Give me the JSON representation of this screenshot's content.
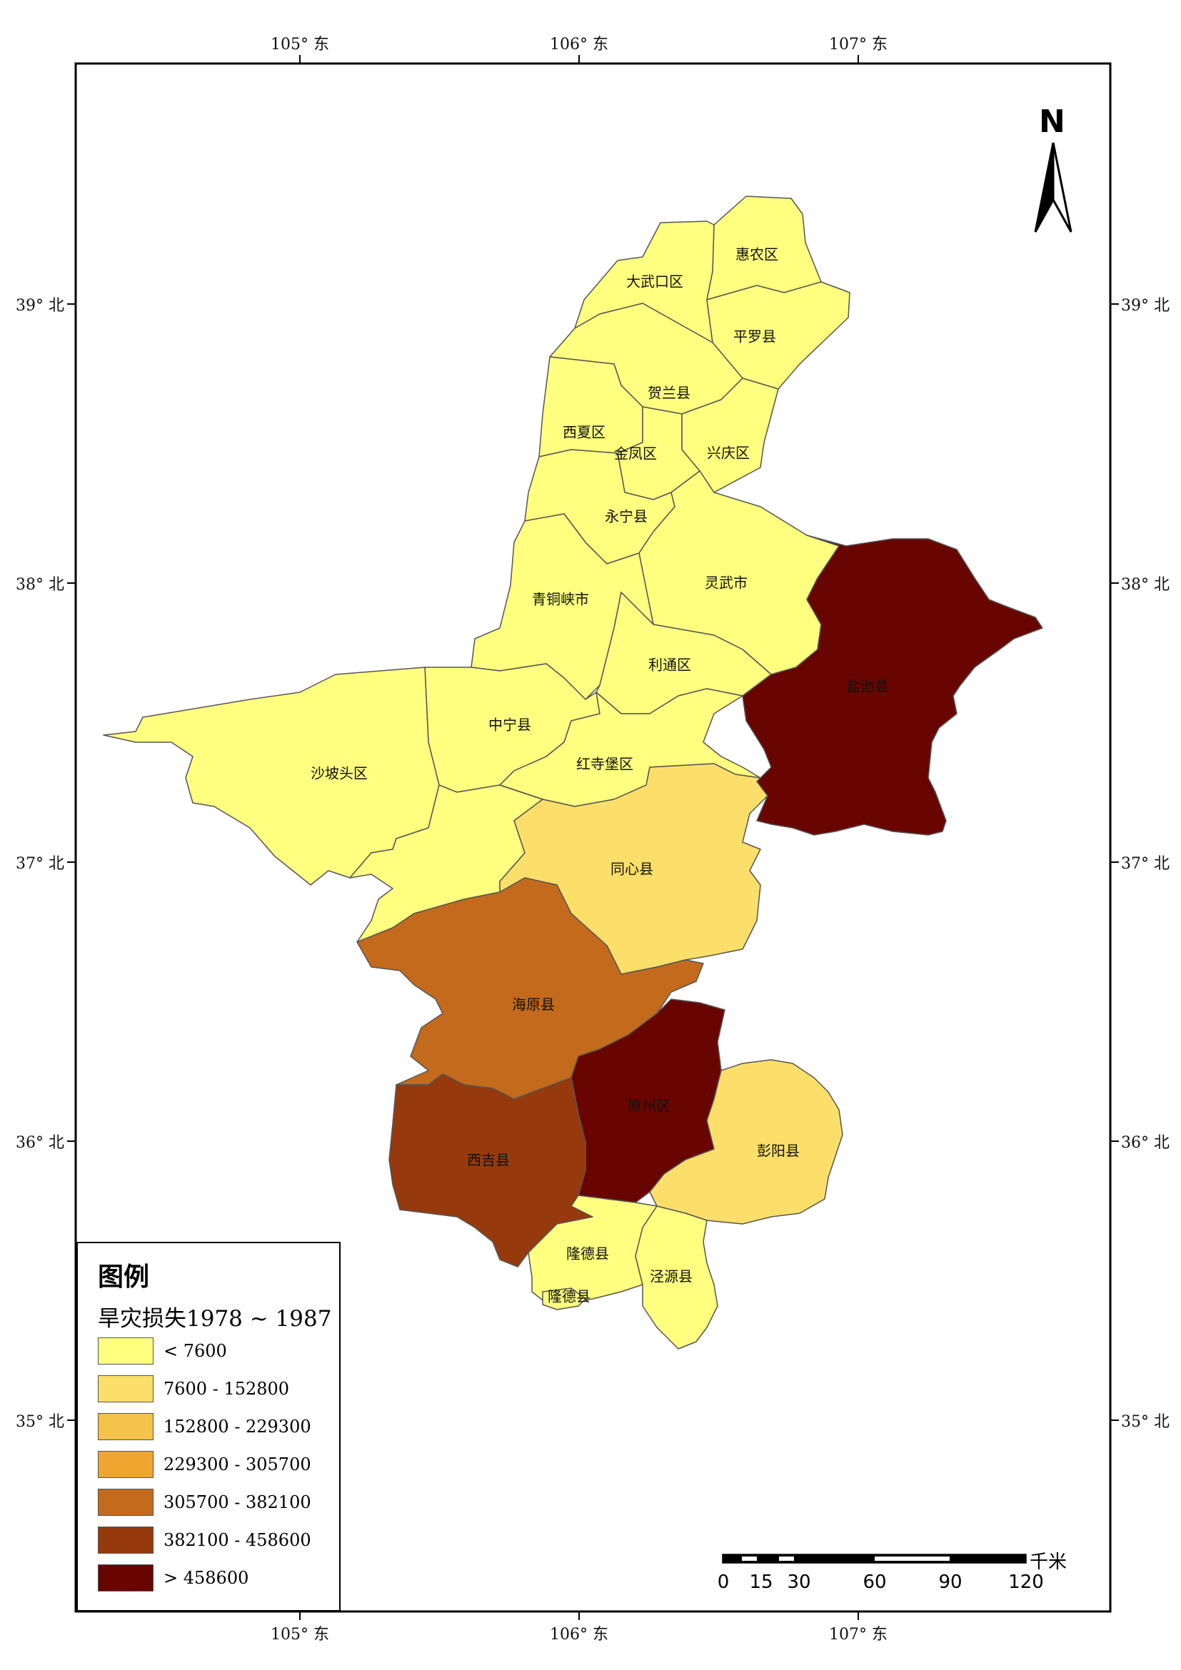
{
  "map": {
    "lon_labels": [
      "105° 东",
      "106° 东",
      "107° 东"
    ],
    "lat_labels": [
      "39° 北",
      "38° 北",
      "37° 北",
      "36° 北",
      "35° 北"
    ]
  },
  "regions": [
    {
      "name": "惠农区",
      "value_class": 0
    },
    {
      "name": "大武口区",
      "value_class": 0
    },
    {
      "name": "平罗县",
      "value_class": 0
    },
    {
      "name": "贺兰县",
      "value_class": 0
    },
    {
      "name": "西夏区",
      "value_class": 0
    },
    {
      "name": "金凤区",
      "value_class": 0
    },
    {
      "name": "兴庆区",
      "value_class": 0
    },
    {
      "name": "永宁县",
      "value_class": 0
    },
    {
      "name": "灵武市",
      "value_class": 0
    },
    {
      "name": "青铜峡市",
      "value_class": 0
    },
    {
      "name": "利通区",
      "value_class": 0
    },
    {
      "name": "盐池县",
      "value_class": 6
    },
    {
      "name": "中宁县",
      "value_class": 0
    },
    {
      "name": "沙坡头区",
      "value_class": 0
    },
    {
      "name": "红寺堡区",
      "value_class": 0
    },
    {
      "name": "同心县",
      "value_class": 1
    },
    {
      "name": "海原县",
      "value_class": 4
    },
    {
      "name": "原州区",
      "value_class": 6
    },
    {
      "name": "西吉县",
      "value_class": 5
    },
    {
      "name": "彭阳县",
      "value_class": 1
    },
    {
      "name": "隆德县",
      "value_class": 0
    },
    {
      "name": "泾源县",
      "value_class": 0
    },
    {
      "name": "隆德县",
      "value_class": 0
    }
  ],
  "legend": {
    "title": "图例",
    "subtitle": "旱灾损失1978 ~ 1987",
    "classes": [
      {
        "label": "< 7600",
        "color": "#FFFF80"
      },
      {
        "label": "7600 - 152800",
        "color": "#FBDF6A"
      },
      {
        "label": "152800 - 229300",
        "color": "#F5C24A"
      },
      {
        "label": "229300 - 305700",
        "color": "#F0A530"
      },
      {
        "label": "305700 - 382100",
        "color": "#C46A1C"
      },
      {
        "label": "382100 - 458600",
        "color": "#963A0E"
      },
      {
        "label": "> 458600",
        "color": "#690501"
      }
    ]
  },
  "north_arrow": {
    "label": "N"
  },
  "scale_bar": {
    "unit": "千米",
    "ticks": [
      "0",
      "15",
      "30",
      "60",
      "90",
      "120"
    ]
  }
}
